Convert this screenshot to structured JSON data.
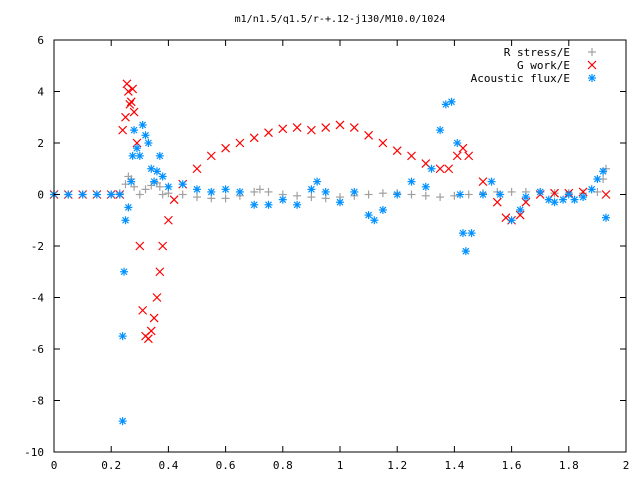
{
  "chart_data": {
    "type": "scatter",
    "title": "m1/n1.5/q1.5/r-+.12-j130/M10.0/1024",
    "xlabel": "",
    "ylabel": "",
    "xlim": [
      0,
      2
    ],
    "ylim": [
      -10,
      6
    ],
    "xticks": [
      0,
      0.2,
      0.4,
      0.6,
      0.8,
      1,
      1.2,
      1.4,
      1.6,
      1.8,
      2
    ],
    "yticks": [
      -10,
      -8,
      -6,
      -4,
      -2,
      0,
      2,
      4,
      6
    ],
    "xtick_labels": [
      "0",
      "0.2",
      "0.4",
      "0.6",
      "0.8",
      "1",
      "1.2",
      "1.4",
      "1.6",
      "1.8",
      "2"
    ],
    "ytick_labels": [
      "-10",
      "-8",
      "-6",
      "-4",
      "-2",
      "0",
      "2",
      "4",
      "6"
    ],
    "grid": false,
    "legend_position": "top-right",
    "series": [
      {
        "name": "R stress/E",
        "marker": "plus",
        "color": "#a0a0a0",
        "points": [
          [
            0.0,
            0.0
          ],
          [
            0.05,
            0.0
          ],
          [
            0.1,
            0.0
          ],
          [
            0.15,
            0.0
          ],
          [
            0.2,
            0.0
          ],
          [
            0.23,
            0.05
          ],
          [
            0.25,
            0.4
          ],
          [
            0.26,
            0.7
          ],
          [
            0.27,
            0.6
          ],
          [
            0.28,
            0.3
          ],
          [
            0.3,
            0.0
          ],
          [
            0.32,
            0.2
          ],
          [
            0.34,
            0.35
          ],
          [
            0.36,
            0.45
          ],
          [
            0.37,
            0.3
          ],
          [
            0.38,
            0.0
          ],
          [
            0.4,
            0.05
          ],
          [
            0.45,
            0.0
          ],
          [
            0.5,
            -0.1
          ],
          [
            0.55,
            -0.15
          ],
          [
            0.6,
            -0.15
          ],
          [
            0.65,
            -0.05
          ],
          [
            0.7,
            0.1
          ],
          [
            0.72,
            0.2
          ],
          [
            0.75,
            0.1
          ],
          [
            0.8,
            0.0
          ],
          [
            0.85,
            -0.05
          ],
          [
            0.9,
            -0.1
          ],
          [
            0.95,
            -0.15
          ],
          [
            1.0,
            -0.1
          ],
          [
            1.05,
            -0.05
          ],
          [
            1.1,
            0.0
          ],
          [
            1.15,
            0.05
          ],
          [
            1.2,
            0.05
          ],
          [
            1.25,
            0.0
          ],
          [
            1.3,
            -0.05
          ],
          [
            1.35,
            -0.1
          ],
          [
            1.4,
            -0.05
          ],
          [
            1.45,
            0.0
          ],
          [
            1.5,
            0.05
          ],
          [
            1.55,
            0.1
          ],
          [
            1.6,
            0.1
          ],
          [
            1.65,
            0.1
          ],
          [
            1.7,
            0.1
          ],
          [
            1.75,
            0.05
          ],
          [
            1.8,
            0.05
          ],
          [
            1.85,
            0.05
          ],
          [
            1.9,
            0.1
          ],
          [
            1.92,
            0.6
          ],
          [
            1.93,
            1.0
          ]
        ]
      },
      {
        "name": "G work/E",
        "marker": "cross",
        "color": "#ff0000",
        "points": [
          [
            0.0,
            0.0
          ],
          [
            0.05,
            0.0
          ],
          [
            0.1,
            0.0
          ],
          [
            0.15,
            0.0
          ],
          [
            0.2,
            0.0
          ],
          [
            0.23,
            0.0
          ],
          [
            0.24,
            2.5
          ],
          [
            0.25,
            3.0
          ],
          [
            0.255,
            4.3
          ],
          [
            0.26,
            4.0
          ],
          [
            0.265,
            3.5
          ],
          [
            0.27,
            3.6
          ],
          [
            0.275,
            4.1
          ],
          [
            0.28,
            3.2
          ],
          [
            0.29,
            2.0
          ],
          [
            0.3,
            -2.0
          ],
          [
            0.31,
            -4.5
          ],
          [
            0.32,
            -5.5
          ],
          [
            0.33,
            -5.6
          ],
          [
            0.34,
            -5.3
          ],
          [
            0.35,
            -4.8
          ],
          [
            0.36,
            -4.0
          ],
          [
            0.37,
            -3.0
          ],
          [
            0.38,
            -2.0
          ],
          [
            0.4,
            -1.0
          ],
          [
            0.42,
            -0.2
          ],
          [
            0.45,
            0.4
          ],
          [
            0.5,
            1.0
          ],
          [
            0.55,
            1.5
          ],
          [
            0.6,
            1.8
          ],
          [
            0.65,
            2.0
          ],
          [
            0.7,
            2.2
          ],
          [
            0.75,
            2.4
          ],
          [
            0.8,
            2.55
          ],
          [
            0.85,
            2.6
          ],
          [
            0.9,
            2.5
          ],
          [
            0.95,
            2.6
          ],
          [
            1.0,
            2.7
          ],
          [
            1.05,
            2.6
          ],
          [
            1.1,
            2.3
          ],
          [
            1.15,
            2.0
          ],
          [
            1.2,
            1.7
          ],
          [
            1.25,
            1.5
          ],
          [
            1.3,
            1.2
          ],
          [
            1.35,
            1.0
          ],
          [
            1.38,
            1.0
          ],
          [
            1.41,
            1.5
          ],
          [
            1.43,
            1.8
          ],
          [
            1.45,
            1.5
          ],
          [
            1.5,
            0.5
          ],
          [
            1.55,
            -0.3
          ],
          [
            1.58,
            -0.9
          ],
          [
            1.6,
            -1.0
          ],
          [
            1.63,
            -0.8
          ],
          [
            1.65,
            -0.3
          ],
          [
            1.7,
            0.0
          ],
          [
            1.75,
            0.05
          ],
          [
            1.8,
            0.05
          ],
          [
            1.85,
            0.1
          ],
          [
            1.93,
            0.0
          ]
        ]
      },
      {
        "name": "Acoustic flux/E",
        "marker": "star",
        "color": "#0090ff",
        "points": [
          [
            0.0,
            0.0
          ],
          [
            0.05,
            0.0
          ],
          [
            0.1,
            0.0
          ],
          [
            0.15,
            0.0
          ],
          [
            0.2,
            0.0
          ],
          [
            0.23,
            0.0
          ],
          [
            0.24,
            -5.5
          ],
          [
            0.24,
            -8.8
          ],
          [
            0.245,
            -3.0
          ],
          [
            0.25,
            -1.0
          ],
          [
            0.26,
            -0.5
          ],
          [
            0.27,
            0.5
          ],
          [
            0.275,
            1.5
          ],
          [
            0.28,
            2.5
          ],
          [
            0.29,
            1.8
          ],
          [
            0.3,
            1.5
          ],
          [
            0.31,
            2.7
          ],
          [
            0.32,
            2.3
          ],
          [
            0.33,
            2.0
          ],
          [
            0.34,
            1.0
          ],
          [
            0.35,
            0.5
          ],
          [
            0.36,
            0.9
          ],
          [
            0.37,
            1.5
          ],
          [
            0.38,
            0.7
          ],
          [
            0.4,
            0.3
          ],
          [
            0.45,
            0.4
          ],
          [
            0.5,
            0.2
          ],
          [
            0.55,
            0.1
          ],
          [
            0.6,
            0.2
          ],
          [
            0.65,
            0.1
          ],
          [
            0.7,
            -0.4
          ],
          [
            0.75,
            -0.4
          ],
          [
            0.8,
            -0.2
          ],
          [
            0.85,
            -0.4
          ],
          [
            0.9,
            0.2
          ],
          [
            0.92,
            0.5
          ],
          [
            0.95,
            0.1
          ],
          [
            1.0,
            -0.3
          ],
          [
            1.05,
            0.1
          ],
          [
            1.1,
            -0.8
          ],
          [
            1.12,
            -1.0
          ],
          [
            1.15,
            -0.6
          ],
          [
            1.2,
            0.0
          ],
          [
            1.25,
            0.5
          ],
          [
            1.3,
            0.3
          ],
          [
            1.32,
            1.0
          ],
          [
            1.35,
            2.5
          ],
          [
            1.37,
            3.5
          ],
          [
            1.39,
            3.6
          ],
          [
            1.41,
            2.0
          ],
          [
            1.42,
            0.0
          ],
          [
            1.43,
            -1.5
          ],
          [
            1.44,
            -2.2
          ],
          [
            1.46,
            -1.5
          ],
          [
            1.5,
            0.0
          ],
          [
            1.53,
            0.5
          ],
          [
            1.56,
            0.0
          ],
          [
            1.6,
            -1.0
          ],
          [
            1.63,
            -0.6
          ],
          [
            1.65,
            -0.1
          ],
          [
            1.7,
            0.1
          ],
          [
            1.73,
            -0.2
          ],
          [
            1.75,
            -0.3
          ],
          [
            1.78,
            -0.2
          ],
          [
            1.8,
            0.0
          ],
          [
            1.82,
            -0.2
          ],
          [
            1.85,
            -0.1
          ],
          [
            1.88,
            0.2
          ],
          [
            1.9,
            0.6
          ],
          [
            1.92,
            0.9
          ],
          [
            1.93,
            -0.9
          ]
        ]
      }
    ]
  }
}
